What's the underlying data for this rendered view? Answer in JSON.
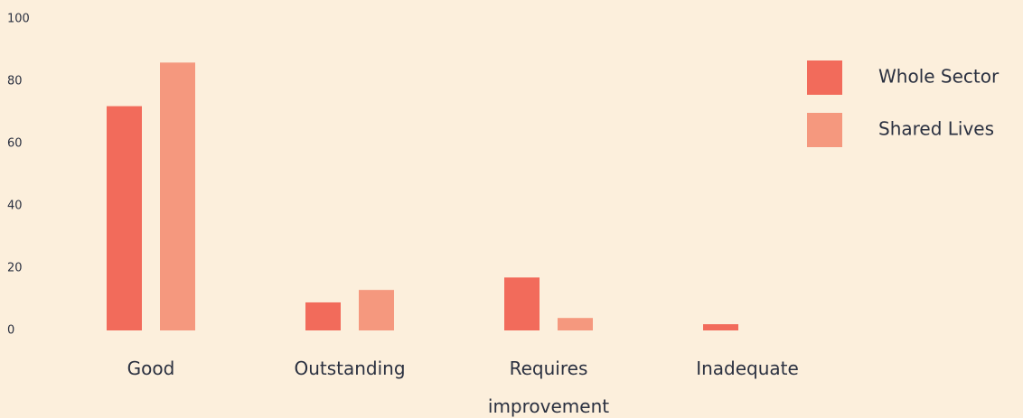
{
  "chart_data": {
    "type": "bar",
    "categories": [
      "Good",
      "Outstanding",
      "Requires improvement",
      "Inadequate"
    ],
    "series": [
      {
        "name": "Whole Sector",
        "color": "#f26b5b",
        "values": [
          72,
          9,
          17,
          2
        ]
      },
      {
        "name": "Shared Lives",
        "color": "#f5987e",
        "values": [
          86,
          13,
          4,
          0
        ]
      }
    ],
    "ylim": [
      0,
      100
    ],
    "yticks": [
      0,
      20,
      40,
      60,
      80,
      100
    ],
    "legend": "right"
  }
}
